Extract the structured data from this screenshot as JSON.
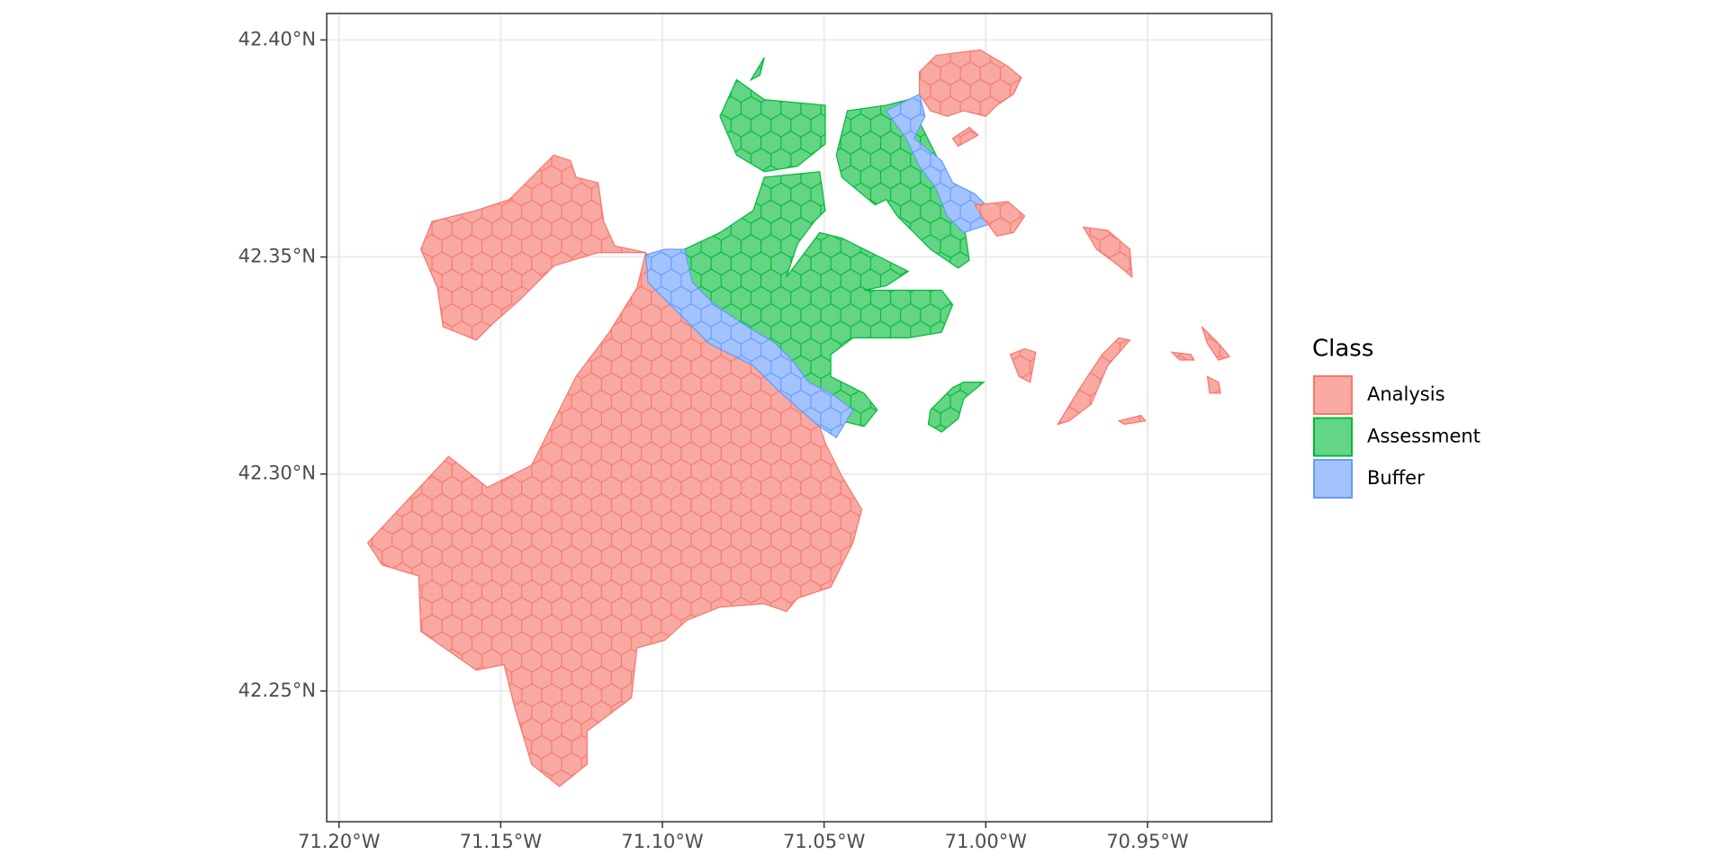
{
  "chart_data": {
    "type": "map",
    "xlim": [
      -71.2038,
      -70.9116
    ],
    "ylim": [
      42.2199,
      42.4061
    ],
    "xticks": [
      {
        "value": -71.2,
        "label": "71.20°W"
      },
      {
        "value": -71.15,
        "label": "71.15°W"
      },
      {
        "value": -71.1,
        "label": "71.10°W"
      },
      {
        "value": -71.05,
        "label": "71.05°W"
      },
      {
        "value": -71.0,
        "label": "71.00°W"
      },
      {
        "value": -70.95,
        "label": "70.95°W"
      }
    ],
    "yticks": [
      {
        "value": 42.25,
        "label": "42.25°N"
      },
      {
        "value": 42.3,
        "label": "42.30°N"
      },
      {
        "value": 42.35,
        "label": "42.35°N"
      },
      {
        "value": 42.4,
        "label": "42.40°N"
      }
    ],
    "grid": true,
    "legend": {
      "title": "Class",
      "position": "right",
      "items": [
        {
          "name": "Analysis",
          "fill": "#F8A9A2",
          "color": "#F8766D"
        },
        {
          "name": "Assessment",
          "fill": "#63D584",
          "color": "#00BA38"
        },
        {
          "name": "Buffer",
          "fill": "#A3C3FF",
          "color": "#619CFF"
        }
      ]
    }
  }
}
